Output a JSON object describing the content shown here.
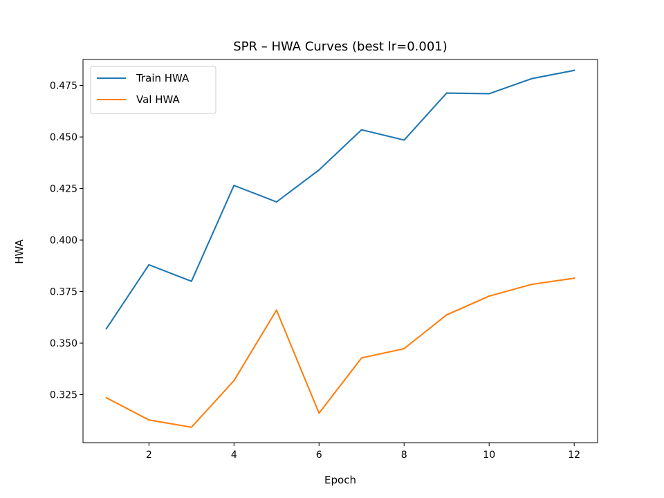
{
  "chart_data": {
    "type": "line",
    "title": "SPR – HWA Curves (best lr=0.001)",
    "xlabel": "Epoch",
    "ylabel": "HWA",
    "x": [
      1,
      2,
      3,
      4,
      5,
      6,
      7,
      8,
      9,
      10,
      11,
      12
    ],
    "xlim": [
      0.45,
      12.55
    ],
    "ylim": [
      0.3017,
      0.4876
    ],
    "xticks": [
      2,
      4,
      6,
      8,
      10,
      12
    ],
    "yticks": [
      0.325,
      0.35,
      0.375,
      0.4,
      0.425,
      0.45,
      0.475
    ],
    "ytick_labels": [
      "0.325",
      "0.350",
      "0.375",
      "0.400",
      "0.425",
      "0.450",
      "0.475"
    ],
    "grid": false,
    "legend_position": "top-left",
    "series": [
      {
        "name": "Train HWA",
        "color": "#1f77b4",
        "values": [
          0.357,
          0.388,
          0.38,
          0.4265,
          0.4185,
          0.434,
          0.4535,
          0.4485,
          0.4713,
          0.471,
          0.4783,
          0.4823
        ]
      },
      {
        "name": "Val HWA",
        "color": "#ff7f0e",
        "values": [
          0.3235,
          0.3127,
          0.3092,
          0.3318,
          0.366,
          0.316,
          0.3428,
          0.3473,
          0.3637,
          0.3728,
          0.3785,
          0.3815
        ]
      }
    ]
  }
}
